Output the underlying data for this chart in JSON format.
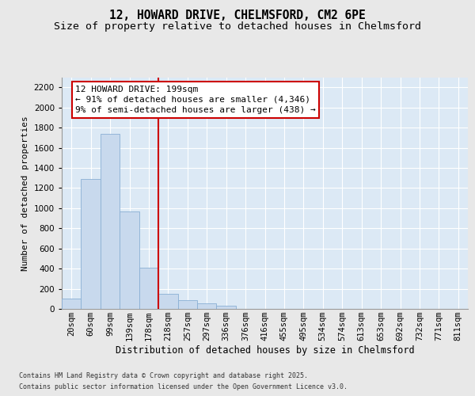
{
  "title1": "12, HOWARD DRIVE, CHELMSFORD, CM2 6PE",
  "title2": "Size of property relative to detached houses in Chelmsford",
  "xlabel": "Distribution of detached houses by size in Chelmsford",
  "ylabel": "Number of detached properties",
  "annotation_title": "12 HOWARD DRIVE: 199sqm",
  "annotation_line1": "← 91% of detached houses are smaller (4,346)",
  "annotation_line2": "9% of semi-detached houses are larger (438) →",
  "footer1": "Contains HM Land Registry data © Crown copyright and database right 2025.",
  "footer2": "Contains public sector information licensed under the Open Government Licence v3.0.",
  "bar_color": "#c8d9ed",
  "bar_edge_color": "#8aafd4",
  "vline_color": "#cc0000",
  "vline_x_index": 4.5,
  "annotation_box_color": "#cc0000",
  "plot_bg_color": "#dce9f5",
  "fig_bg_color": "#e8e8e8",
  "categories": [
    "20sqm",
    "60sqm",
    "99sqm",
    "139sqm",
    "178sqm",
    "218sqm",
    "257sqm",
    "297sqm",
    "336sqm",
    "376sqm",
    "416sqm",
    "455sqm",
    "495sqm",
    "534sqm",
    "574sqm",
    "613sqm",
    "653sqm",
    "692sqm",
    "732sqm",
    "771sqm",
    "811sqm"
  ],
  "values": [
    100,
    1290,
    1740,
    970,
    410,
    150,
    90,
    55,
    30,
    0,
    0,
    0,
    0,
    0,
    0,
    0,
    0,
    0,
    0,
    0,
    0
  ],
  "ylim": [
    0,
    2300
  ],
  "yticks": [
    0,
    200,
    400,
    600,
    800,
    1000,
    1200,
    1400,
    1600,
    1800,
    2000,
    2200
  ],
  "grid_color": "#ffffff",
  "title1_fontsize": 10.5,
  "title2_fontsize": 9.5,
  "xlabel_fontsize": 8.5,
  "ylabel_fontsize": 8,
  "tick_fontsize": 7.5,
  "annotation_fontsize": 8,
  "footer_fontsize": 6
}
